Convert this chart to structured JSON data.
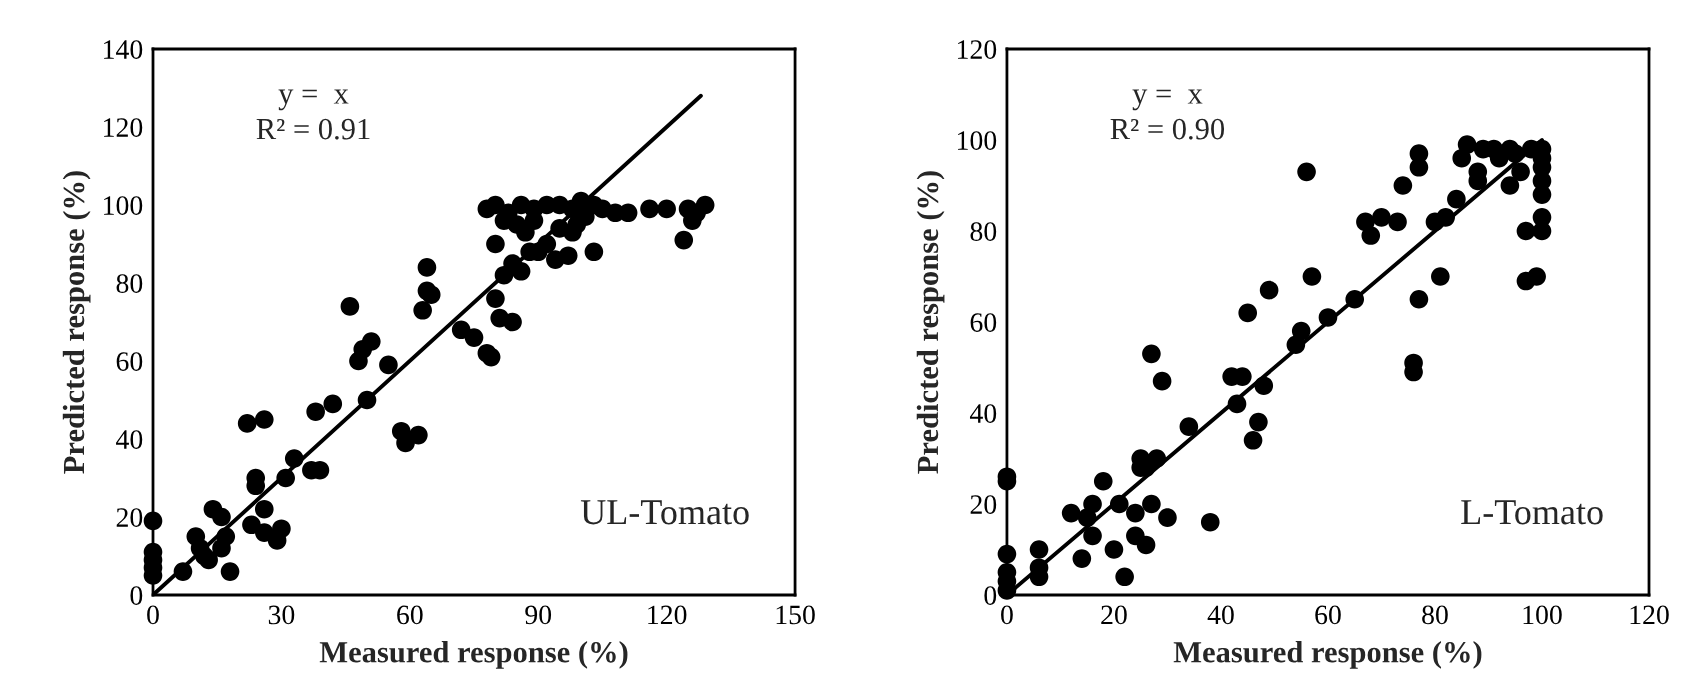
{
  "chart_data": [
    {
      "type": "scatter",
      "xlabel": "Measured response (%)",
      "ylabel": "Predicted response (%)",
      "xlim": [
        0,
        150
      ],
      "ylim": [
        0,
        140
      ],
      "xticks": [
        0,
        30,
        60,
        90,
        120,
        150
      ],
      "yticks": [
        0,
        20,
        40,
        60,
        80,
        100,
        120,
        140
      ],
      "grid": false,
      "annotations": [
        "y =  x",
        "R² = 0.91",
        "UL-Tomato"
      ],
      "series": [
        {
          "marker": "circle",
          "color": "#000000",
          "x": [
            0,
            0,
            0,
            0,
            0,
            7,
            10,
            11,
            12,
            13,
            14,
            16,
            16,
            17,
            18,
            22,
            24,
            24,
            23,
            26,
            26,
            26,
            29,
            30,
            31,
            33,
            37,
            39,
            38,
            42,
            46,
            48,
            49,
            51,
            50,
            55,
            58,
            59,
            62,
            63,
            64,
            65,
            64,
            72,
            75,
            78,
            79,
            81,
            80,
            84,
            86,
            88,
            87,
            80,
            85,
            78,
            80,
            83,
            86,
            89,
            92,
            95,
            98,
            100,
            103,
            105,
            108,
            111,
            116,
            120,
            125,
            127,
            129,
            126,
            124,
            103,
            98,
            95,
            92,
            90,
            89,
            82,
            82,
            84,
            99,
            101,
            97,
            94
          ],
          "values": [
            5,
            7,
            9,
            11,
            19,
            6,
            15,
            12,
            10,
            9,
            22,
            20,
            12,
            15,
            6,
            44,
            30,
            28,
            18,
            45,
            22,
            16,
            14,
            17,
            30,
            35,
            32,
            32,
            47,
            49,
            74,
            60,
            63,
            65,
            50,
            59,
            42,
            39,
            41,
            73,
            78,
            77,
            84,
            68,
            66,
            62,
            61,
            71,
            76,
            70,
            83,
            88,
            93,
            90,
            95,
            99,
            100,
            98,
            100,
            99,
            100,
            100,
            99,
            101,
            100,
            99,
            98,
            98,
            99,
            99,
            99,
            98,
            100,
            96,
            91,
            88,
            93,
            94,
            90,
            88,
            96,
            96,
            82,
            85,
            95,
            97,
            87,
            86
          ]
        },
        {
          "type": "line",
          "color": "#000000",
          "x": [
            0,
            128
          ],
          "values": [
            0,
            128
          ]
        }
      ]
    },
    {
      "type": "scatter",
      "xlabel": "Measured response (%)",
      "ylabel": "Predicted response (%)",
      "xlim": [
        0,
        120
      ],
      "ylim": [
        0,
        120
      ],
      "xticks": [
        0,
        20,
        40,
        60,
        80,
        100,
        120
      ],
      "yticks": [
        0,
        20,
        40,
        60,
        80,
        100,
        120
      ],
      "grid": false,
      "annotations": [
        "y =  x",
        "R² = 0.90",
        "L-Tomato"
      ],
      "series": [
        {
          "marker": "circle",
          "color": "#000000",
          "x": [
            0,
            0,
            0,
            0,
            0,
            0,
            6,
            6,
            6,
            12,
            14,
            15,
            16,
            16,
            18,
            20,
            21,
            22,
            24,
            24,
            25,
            25,
            26,
            26,
            27,
            28,
            27,
            29,
            30,
            34,
            38,
            42,
            44,
            43,
            46,
            47,
            48,
            45,
            49,
            54,
            55,
            56,
            57,
            60,
            65,
            68,
            67,
            70,
            73,
            74,
            76,
            76,
            77,
            77,
            77,
            80,
            81,
            82,
            84,
            85,
            86,
            88,
            88,
            89,
            91,
            92,
            94,
            94,
            96,
            98,
            99,
            100,
            100,
            100,
            100,
            100,
            100,
            100,
            97,
            97,
            95
          ],
          "values": [
            1,
            3,
            5,
            9,
            25,
            26,
            6,
            4,
            10,
            18,
            8,
            17,
            13,
            20,
            25,
            10,
            20,
            4,
            13,
            18,
            28,
            30,
            11,
            28,
            20,
            30,
            53,
            47,
            17,
            37,
            16,
            48,
            48,
            42,
            34,
            38,
            46,
            62,
            67,
            55,
            58,
            93,
            70,
            61,
            65,
            79,
            82,
            83,
            82,
            90,
            51,
            49,
            94,
            65,
            97,
            82,
            70,
            83,
            87,
            96,
            99,
            93,
            91,
            98,
            98,
            96,
            98,
            90,
            93,
            98,
            70,
            98,
            96,
            94,
            91,
            88,
            83,
            80,
            80,
            69,
            97
          ]
        },
        {
          "type": "line",
          "color": "#000000",
          "x": [
            0,
            100
          ],
          "values": [
            0,
            100
          ]
        }
      ]
    }
  ]
}
